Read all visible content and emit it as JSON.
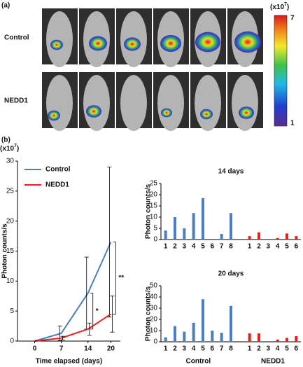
{
  "panel_labels": [
    "(a)",
    "(b)"
  ],
  "panel_a": {
    "row_labels": [
      "Control",
      "NEDD1"
    ],
    "colorbar": {
      "unit_prefix": "(x10",
      "unit_exp": "7",
      "unit_suffix": ")",
      "max": 7,
      "min": 1
    }
  },
  "chart_data": [
    {
      "type": "line",
      "y_unit_prefix": "(x10",
      "y_unit_exp": "7",
      "y_unit_suffix": ")",
      "ylabel": "Photon counts/s",
      "xlabel": "Time elapsed (days)",
      "x": [
        0,
        7,
        14,
        20
      ],
      "series": [
        {
          "name": "Control",
          "color": "#4a7fc1",
          "values": [
            0,
            1.3,
            8,
            16.5
          ],
          "errors": [
            0,
            1.2,
            6,
            12.5
          ]
        },
        {
          "name": "NEDD1",
          "color": "#e3221b",
          "values": [
            0,
            0.5,
            2,
            4.5
          ],
          "errors": [
            0,
            0.3,
            1,
            3
          ]
        }
      ],
      "xlim": [
        -4.5,
        22.5
      ],
      "xticks": [
        0,
        7,
        14,
        20
      ],
      "ylim": [
        0,
        30
      ],
      "yticks": [
        0,
        5,
        10,
        15,
        20,
        25,
        30
      ],
      "legend": "upper left",
      "significance": [
        {
          "x": 14,
          "label": "*"
        },
        {
          "x": 20,
          "label": "**"
        }
      ]
    },
    {
      "type": "bar",
      "title": "14 days",
      "ylabel": "Photon counts/s",
      "categories": [
        "1",
        "2",
        "3",
        "4",
        "5",
        "6",
        "7",
        "8",
        null,
        "1",
        "2",
        "3",
        "4",
        "5",
        "6"
      ],
      "series": [
        {
          "color": "#4a7fc1",
          "values": [
            4,
            10,
            5,
            11.8,
            18.5,
            0,
            2.5,
            11.8,
            null,
            null,
            null,
            null,
            null,
            null,
            null
          ]
        },
        {
          "color": "#e3221b",
          "values": [
            null,
            null,
            null,
            null,
            null,
            null,
            null,
            null,
            null,
            1.5,
            3.2,
            0,
            0.7,
            2.7,
            1.5
          ]
        }
      ],
      "ylim": [
        0,
        25
      ],
      "yticks": [
        0,
        5,
        10,
        15,
        20,
        25
      ]
    },
    {
      "type": "bar",
      "title": "20 days",
      "ylabel": "Photon counts/s",
      "categories": [
        "1",
        "2",
        "3",
        "4",
        "5",
        "6",
        "7",
        "8",
        null,
        "1",
        "2",
        "3",
        "4",
        "5",
        "6"
      ],
      "series": [
        {
          "name": "Control",
          "color": "#4a7fc1",
          "values": [
            4,
            14,
            9,
            17,
            38,
            10,
            8,
            32,
            null,
            null,
            null,
            null,
            null,
            null,
            null
          ]
        },
        {
          "name": "NEDD1",
          "color": "#e3221b",
          "values": [
            null,
            null,
            null,
            null,
            null,
            null,
            null,
            null,
            null,
            7.5,
            7.5,
            0,
            2,
            3.5,
            5
          ]
        }
      ],
      "ylim": [
        0,
        50
      ],
      "yticks": [
        0,
        10,
        20,
        30,
        40,
        50
      ]
    }
  ]
}
